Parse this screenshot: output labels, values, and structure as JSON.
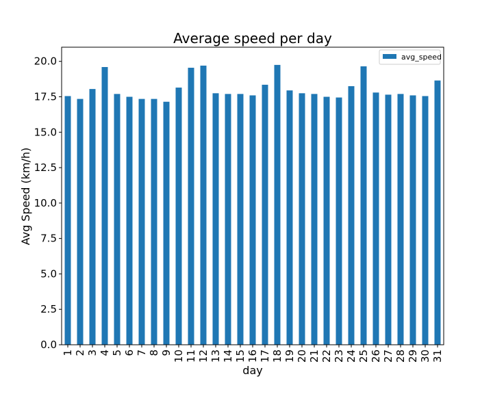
{
  "chart_data": {
    "type": "bar",
    "title": "Average speed per day",
    "xlabel": "day",
    "ylabel": "Avg Speed (km/h)",
    "ylim": [
      0,
      21
    ],
    "yticks": [
      "0.0",
      "2.5",
      "5.0",
      "7.5",
      "10.0",
      "12.5",
      "15.0",
      "17.5",
      "20.0"
    ],
    "categories": [
      "1",
      "2",
      "3",
      "4",
      "5",
      "6",
      "7",
      "8",
      "9",
      "10",
      "11",
      "12",
      "13",
      "14",
      "15",
      "16",
      "17",
      "18",
      "19",
      "20",
      "21",
      "22",
      "23",
      "24",
      "25",
      "26",
      "27",
      "28",
      "29",
      "30",
      "31"
    ],
    "series": [
      {
        "name": "avg_speed",
        "color": "#1f77b4",
        "values": [
          17.55,
          17.35,
          18.05,
          19.6,
          17.7,
          17.5,
          17.35,
          17.35,
          17.15,
          18.15,
          19.55,
          19.7,
          17.75,
          17.7,
          17.7,
          17.6,
          18.35,
          19.75,
          17.95,
          17.75,
          17.7,
          17.5,
          17.45,
          18.25,
          19.65,
          17.8,
          17.65,
          17.7,
          17.6,
          17.55,
          18.65
        ]
      }
    ],
    "legend": {
      "position": "top-right"
    },
    "grid": false
  }
}
